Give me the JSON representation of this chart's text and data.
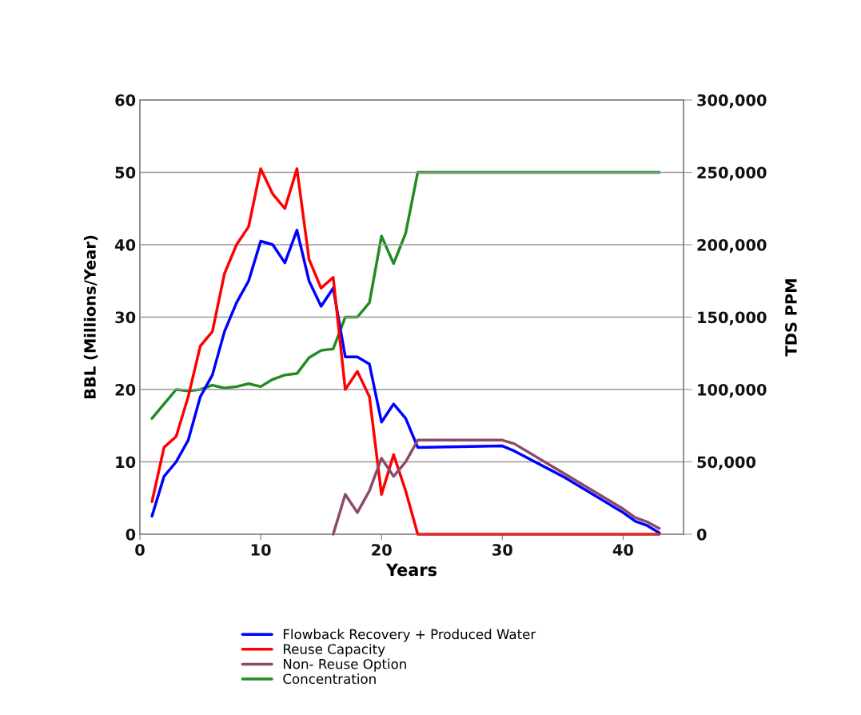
{
  "chart_data": {
    "type": "line",
    "xlabel": "Years",
    "ylabel": "BBL (Millions/Year)",
    "y2label": "TDS PPM",
    "xlim": [
      0,
      45
    ],
    "xticks": [
      0,
      10,
      20,
      30,
      40
    ],
    "ylim": [
      0,
      60
    ],
    "yticks": [
      0,
      10,
      20,
      30,
      40,
      50,
      60
    ],
    "y2lim": [
      0,
      300000
    ],
    "y2ticks": [
      {
        "value": 0,
        "label": "0"
      },
      {
        "value": 50000,
        "label": "50,000"
      },
      {
        "value": 100000,
        "label": "100,000"
      },
      {
        "value": 150000,
        "label": "150,000"
      },
      {
        "value": 200000,
        "label": "200,000"
      },
      {
        "value": 250000,
        "label": "250,000"
      },
      {
        "value": 300000,
        "label": "300,000"
      }
    ],
    "grid": "y",
    "legend": "bottom",
    "marker": "none",
    "line_style": "solid",
    "series": [
      {
        "name": "Flowback Recovery + Produced Water",
        "color": "#0000ff",
        "x": [
          1,
          2,
          3,
          4,
          5,
          6,
          7,
          8,
          9,
          10,
          11,
          12,
          13,
          14,
          15,
          16,
          17,
          18,
          19,
          20,
          21,
          22,
          23,
          30,
          31,
          35,
          40,
          41,
          42,
          43
        ],
        "values": [
          2.5,
          8,
          10,
          13,
          19,
          22,
          28,
          32,
          35,
          40.5,
          40,
          37.5,
          42,
          35,
          31.5,
          34,
          24.5,
          24.5,
          23.5,
          15.5,
          18,
          16,
          12,
          12.2,
          11.5,
          8,
          3,
          1.8,
          1.2,
          0.2
        ]
      },
      {
        "name": "Reuse Capacity",
        "color": "#ff0000",
        "x": [
          1,
          2,
          3,
          4,
          5,
          6,
          7,
          8,
          9,
          10,
          11,
          12,
          13,
          14,
          15,
          16,
          17,
          18,
          19,
          20,
          21,
          22,
          23,
          43
        ],
        "values": [
          4.5,
          12,
          13.5,
          19,
          26,
          28,
          36,
          40,
          42.5,
          50.5,
          47,
          45,
          50.5,
          38,
          34,
          35.5,
          20,
          22.5,
          19,
          5.5,
          11,
          6,
          0,
          0
        ]
      },
      {
        "name": "Non- Reuse Option",
        "color": "#8b4a6b",
        "x": [
          16,
          17,
          18,
          19,
          20,
          21,
          22,
          23,
          30,
          31,
          35,
          40,
          41,
          42,
          43
        ],
        "values": [
          0,
          5.5,
          3,
          6,
          10.5,
          8,
          10,
          13,
          13,
          12.5,
          8.5,
          3.5,
          2.3,
          1.7,
          0.8
        ]
      },
      {
        "name": "Concentration",
        "color": "#228b22",
        "axis": "y2",
        "x": [
          1,
          2,
          3,
          4,
          5,
          6,
          7,
          8,
          9,
          10,
          11,
          12,
          13,
          14,
          15,
          16,
          17,
          18,
          19,
          20,
          21,
          22,
          23,
          43
        ],
        "values": [
          80000,
          90000,
          100000,
          99000,
          100000,
          103000,
          101000,
          102000,
          104000,
          102000,
          107000,
          110000,
          111000,
          122000,
          127000,
          128000,
          150000,
          150000,
          160000,
          206000,
          187000,
          208000,
          250000,
          250000
        ]
      }
    ]
  }
}
